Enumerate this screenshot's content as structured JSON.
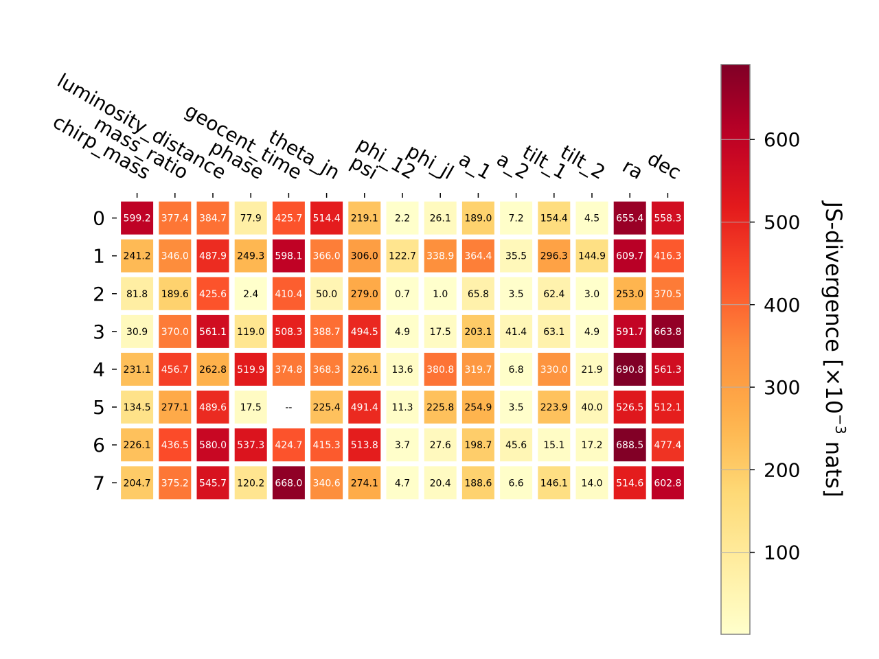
{
  "chart_data": {
    "type": "heatmap",
    "title": "",
    "xlabel": "",
    "ylabel": "",
    "columns": [
      "chirp_mass",
      "mass_ratio",
      "luminosity_distance",
      "phase",
      "geocent_time",
      "theta_jn",
      "psi",
      "phi_12",
      "phi_jl",
      "a_1",
      "a_2",
      "tilt_1",
      "tilt_2",
      "ra",
      "dec"
    ],
    "rows": [
      "0",
      "1",
      "2",
      "3",
      "4",
      "5",
      "6",
      "7"
    ],
    "values": [
      [
        599.2,
        377.4,
        384.7,
        77.9,
        425.7,
        514.4,
        219.1,
        2.2,
        26.1,
        189.0,
        7.2,
        154.4,
        4.5,
        655.4,
        558.3
      ],
      [
        241.2,
        346.0,
        487.9,
        249.3,
        598.1,
        366.0,
        306.0,
        122.7,
        338.9,
        364.4,
        35.5,
        296.3,
        144.9,
        609.7,
        416.3
      ],
      [
        81.8,
        189.6,
        425.6,
        2.4,
        410.4,
        50.0,
        279.0,
        0.7,
        1.0,
        65.8,
        3.5,
        62.4,
        3.0,
        253.0,
        370.5
      ],
      [
        30.9,
        370.0,
        561.1,
        119.0,
        508.3,
        388.7,
        494.5,
        4.9,
        17.5,
        203.1,
        41.4,
        63.1,
        4.9,
        591.7,
        663.8
      ],
      [
        231.1,
        456.7,
        262.8,
        519.9,
        374.8,
        368.3,
        226.1,
        13.6,
        380.8,
        319.7,
        6.8,
        330.0,
        21.9,
        690.8,
        561.3
      ],
      [
        134.5,
        277.1,
        489.6,
        17.5,
        null,
        225.4,
        491.4,
        11.3,
        225.8,
        254.9,
        3.5,
        223.9,
        40.0,
        526.5,
        512.1
      ],
      [
        226.1,
        436.5,
        580.0,
        537.3,
        424.7,
        415.3,
        513.8,
        3.7,
        27.6,
        198.7,
        45.6,
        15.1,
        17.2,
        688.5,
        477.4
      ],
      [
        204.7,
        375.2,
        545.7,
        120.2,
        668.0,
        340.6,
        274.1,
        4.7,
        20.4,
        188.6,
        6.6,
        146.1,
        14.0,
        514.6,
        602.8
      ]
    ],
    "missing_label": "--",
    "colormap": "YlOrRd",
    "vmin": 0.7,
    "vmax": 690.8,
    "colorbar": {
      "label_prefix": "JS-divergence [×10",
      "label_exp": "−3",
      "label_suffix": " nats]",
      "ticks": [
        100,
        200,
        300,
        400,
        500,
        600
      ],
      "tick_labels": [
        "100",
        "200",
        "300",
        "400",
        "500",
        "600"
      ]
    },
    "grid": false
  }
}
